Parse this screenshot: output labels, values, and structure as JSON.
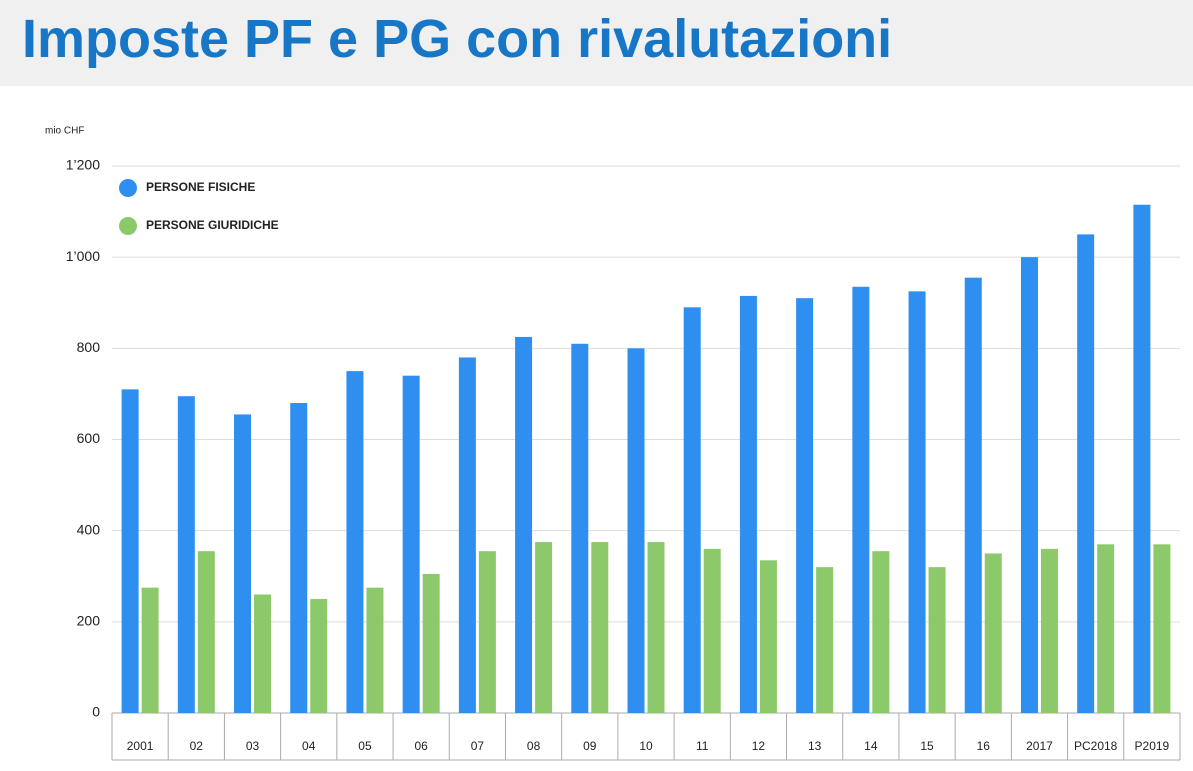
{
  "chart_data": {
    "type": "bar",
    "title": "Imposte PF e PG con rivalutazioni",
    "y_unit": "mio CHF",
    "categories": [
      "2001",
      "02",
      "03",
      "04",
      "05",
      "06",
      "07",
      "08",
      "09",
      "10",
      "11",
      "12",
      "13",
      "14",
      "15",
      "16",
      "2017",
      "PC2018",
      "P2019"
    ],
    "series": [
      {
        "name": "PERSONE FISICHE",
        "color": "#2e8ff0",
        "values": [
          710,
          695,
          655,
          680,
          750,
          740,
          780,
          825,
          810,
          800,
          890,
          915,
          910,
          935,
          925,
          955,
          1000,
          1050,
          1115
        ]
      },
      {
        "name": "PERSONE GIURIDICHE",
        "color": "#8cc96a",
        "values": [
          275,
          355,
          260,
          250,
          275,
          305,
          355,
          375,
          375,
          375,
          360,
          335,
          320,
          355,
          320,
          350,
          360,
          370,
          370
        ]
      }
    ],
    "ylim": [
      0,
      1200
    ],
    "yticks": [
      0,
      200,
      400,
      600,
      800,
      {
        "value": 1000,
        "label": "1’000"
      },
      {
        "value": 1200,
        "label": "1’200"
      }
    ],
    "grid": true,
    "legend": "upper left"
  }
}
